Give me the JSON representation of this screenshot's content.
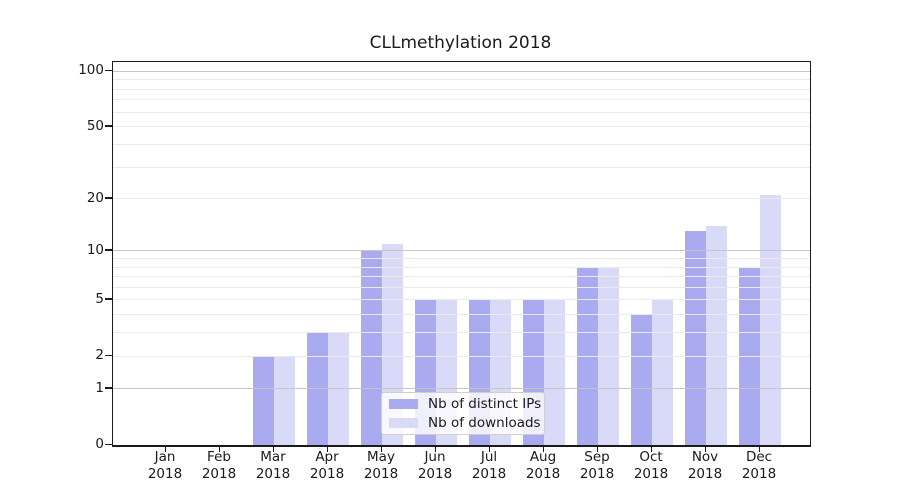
{
  "title": "CLLmethylation 2018",
  "legend": {
    "items": [
      {
        "label": "Nb of distinct IPs"
      },
      {
        "label": "Nb of downloads"
      }
    ]
  },
  "chart_data": {
    "type": "bar",
    "title": "CLLmethylation 2018",
    "categories": [
      "Jan 2018",
      "Feb 2018",
      "Mar 2018",
      "Apr 2018",
      "May 2018",
      "Jun 2018",
      "Jul 2018",
      "Aug 2018",
      "Sep 2018",
      "Oct 2018",
      "Nov 2018",
      "Dec 2018"
    ],
    "x_tick_labels": {
      "months": [
        "Jan",
        "Feb",
        "Mar",
        "Apr",
        "May",
        "Jun",
        "Jul",
        "Aug",
        "Sep",
        "Oct",
        "Nov",
        "Dec"
      ],
      "year": "2018"
    },
    "series": [
      {
        "name": "Nb of distinct IPs",
        "color": "#aaaaf0",
        "values": [
          0,
          0,
          2,
          3,
          10,
          5,
          5,
          5,
          8,
          4,
          13,
          8
        ]
      },
      {
        "name": "Nb of downloads",
        "color": "#d9d9f8",
        "values": [
          0,
          0,
          2,
          3,
          11,
          5,
          5,
          5,
          8,
          5,
          14,
          21
        ]
      }
    ],
    "y_axis": {
      "scale": "log(1+y)",
      "tick_values": [
        0,
        1,
        2,
        5,
        10,
        20,
        50,
        100
      ],
      "minor_gridline_values": [
        3,
        4,
        6,
        7,
        8,
        9,
        30,
        40,
        60,
        70,
        80,
        90
      ],
      "decade_gridline_values": [
        1,
        10,
        100
      ],
      "range": [
        0,
        112
      ]
    },
    "grid": true,
    "legend_position": "lower center inside axes",
    "colors": {
      "bar_distinct_ips": "#aaaaf0",
      "bar_downloads": "#d9d9f8",
      "decade_grid": "#c6c6c6",
      "minor_grid": "#eaeaea",
      "axis": "#1a1a1a",
      "text": "#1a1a1a",
      "legend_border": "#cfcfcf"
    }
  }
}
